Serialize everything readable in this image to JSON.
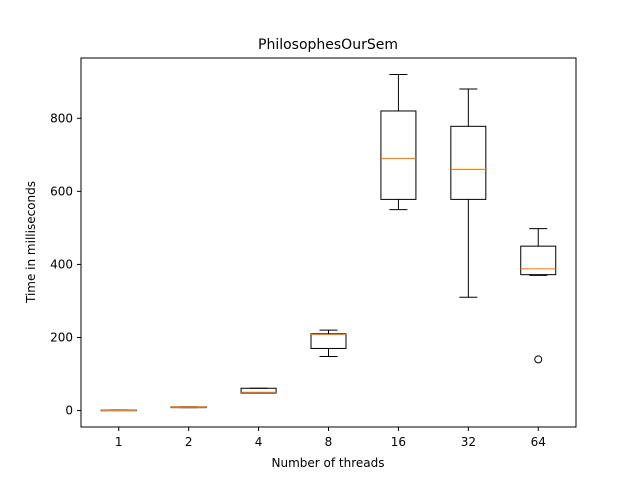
{
  "chart_data": {
    "type": "box",
    "title": "PhilosophesOurSem",
    "xlabel": "Number of threads",
    "ylabel": "Time in milliseconds",
    "categories": [
      "1",
      "2",
      "4",
      "8",
      "16",
      "32",
      "64"
    ],
    "ylim": [
      -45,
      965
    ],
    "yticks": [
      0,
      200,
      400,
      600,
      800
    ],
    "grid": false,
    "boxes": [
      {
        "category": "1",
        "whisker_low": 0,
        "q1": 0,
        "median": 0,
        "q3": 1,
        "whisker_high": 1,
        "outliers": []
      },
      {
        "category": "2",
        "whisker_low": 8,
        "q1": 8,
        "median": 9,
        "q3": 10,
        "whisker_high": 10,
        "outliers": []
      },
      {
        "category": "4",
        "whisker_low": 48,
        "q1": 48,
        "median": 50,
        "q3": 61,
        "whisker_high": 61,
        "outliers": []
      },
      {
        "category": "8",
        "whisker_low": 148,
        "q1": 170,
        "median": 208,
        "q3": 210,
        "whisker_high": 220,
        "outliers": []
      },
      {
        "category": "16",
        "whisker_low": 550,
        "q1": 578,
        "median": 690,
        "q3": 820,
        "whisker_high": 920,
        "outliers": []
      },
      {
        "category": "32",
        "whisker_low": 310,
        "q1": 578,
        "median": 660,
        "q3": 778,
        "whisker_high": 880,
        "outliers": []
      },
      {
        "category": "64",
        "whisker_low": 370,
        "q1": 372,
        "median": 388,
        "q3": 450,
        "whisker_high": 498,
        "outliers": [
          140
        ]
      }
    ],
    "colors": {
      "box": "#000000",
      "median": "#ff7f0e",
      "axes": "#000000"
    }
  }
}
